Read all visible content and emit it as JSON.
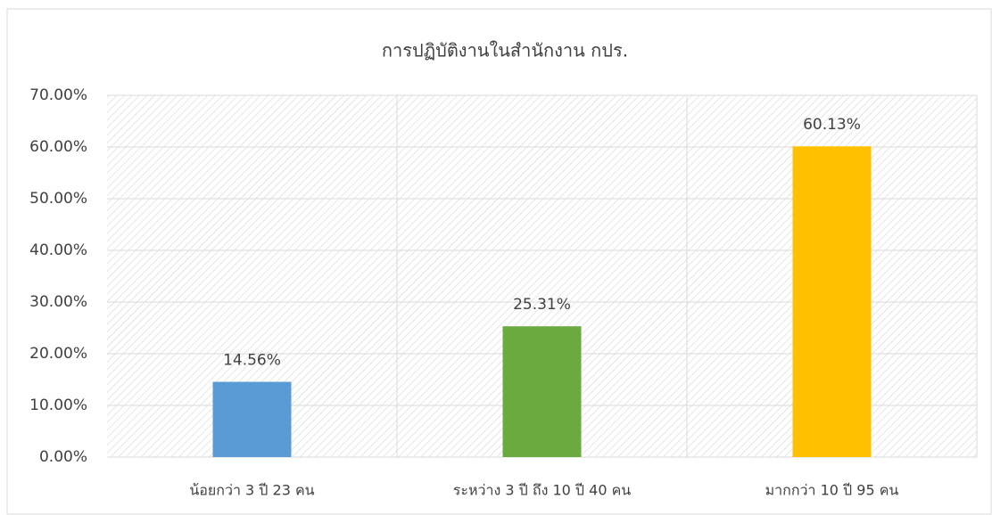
{
  "chart_data": {
    "type": "bar",
    "title": "การปฏิบัติงานในสำนักงาน กปร.",
    "categories": [
      "น้อยกว่า 3 ปี 23 คน",
      "ระหว่าง 3 ปี ถึง 10 ปี  40 คน",
      "มากกว่า 10 ปี 95 คน"
    ],
    "values": [
      14.56,
      25.31,
      60.13
    ],
    "value_labels": [
      "14.56%",
      "25.31%",
      "60.13%"
    ],
    "colors": [
      "#5b9bd5",
      "#6aaa3f",
      "#ffc000"
    ],
    "ylim": [
      0,
      70
    ],
    "yticks": [
      {
        "value": 0,
        "label": "0.00%"
      },
      {
        "value": 10,
        "label": "10.00%"
      },
      {
        "value": 20,
        "label": "20.00%"
      },
      {
        "value": 30,
        "label": "30.00%"
      },
      {
        "value": 40,
        "label": "40.00%"
      },
      {
        "value": 50,
        "label": "50.00%"
      },
      {
        "value": 60,
        "label": "60.00%"
      },
      {
        "value": 70,
        "label": "70.00%"
      }
    ],
    "grid": true
  }
}
